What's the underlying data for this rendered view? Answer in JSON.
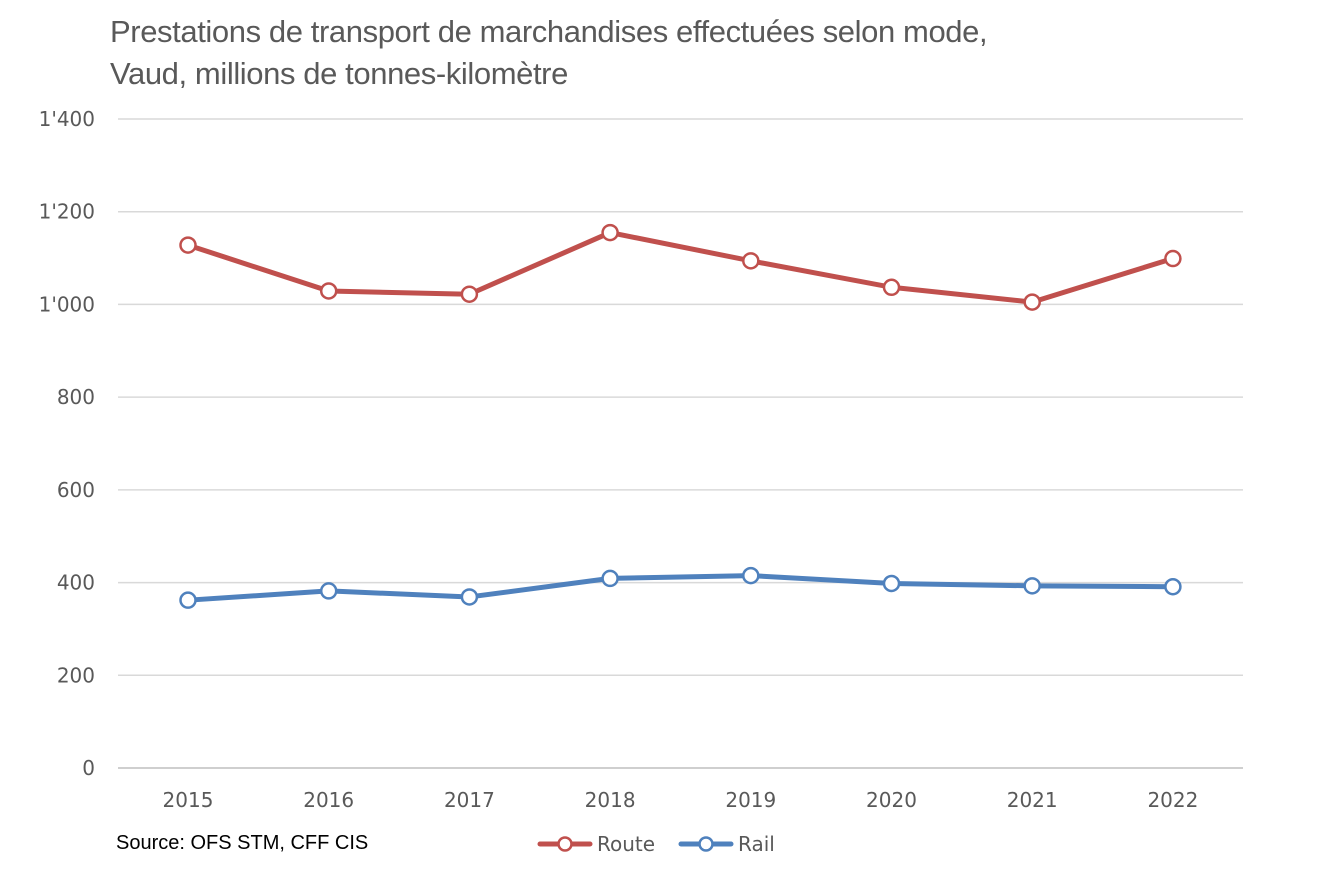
{
  "chart_data": {
    "type": "line",
    "title": [
      "Prestations de transport de marchandises effectuées selon mode,",
      "Vaud, millions de tonnes-kilomètre"
    ],
    "xlabel": "",
    "ylabel": "",
    "categories": [
      "2015",
      "2016",
      "2017",
      "2018",
      "2019",
      "2020",
      "2021",
      "2022"
    ],
    "ylim": [
      0,
      1400
    ],
    "yticks": [
      0,
      200,
      400,
      600,
      800,
      1000,
      1200,
      1400
    ],
    "ytick_labels": [
      "0",
      "200",
      "400",
      "600",
      "800",
      "1'000",
      "1'200",
      "1'400"
    ],
    "grid": true,
    "legend_position": "bottom",
    "series": [
      {
        "name": "Route",
        "color": "#C0504D",
        "values": [
          1128,
          1029,
          1022,
          1155,
          1094,
          1037,
          1005,
          1099
        ]
      },
      {
        "name": "Rail",
        "color": "#4F81BD",
        "values": [
          362,
          382,
          369,
          409,
          415,
          398,
          393,
          391
        ]
      }
    ],
    "source": "Source: OFS STM, CFF CIS"
  }
}
